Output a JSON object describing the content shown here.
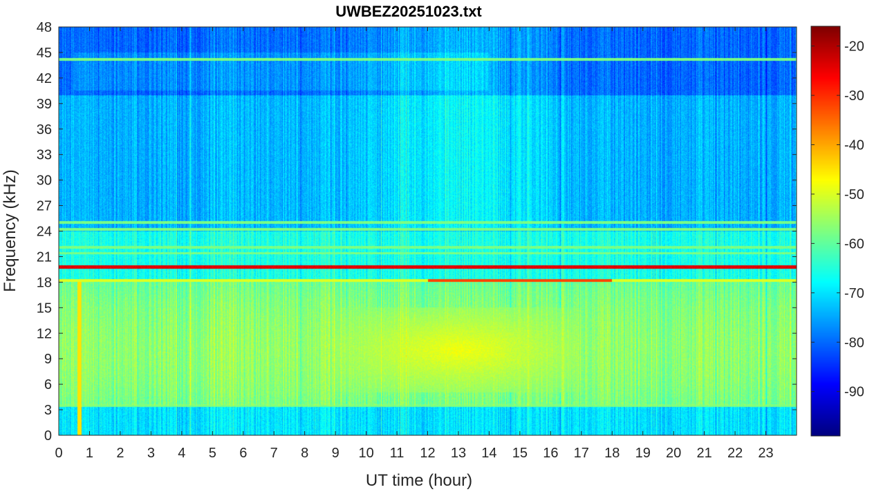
{
  "chart_data": {
    "type": "heatmap",
    "title": "UWBEZ20251023.txt",
    "xlabel": "UT time (hour)",
    "ylabel": "Frequency (kHz)",
    "xlim": [
      0,
      24
    ],
    "ylim": [
      0,
      48
    ],
    "x_ticks": [
      "0",
      "1",
      "2",
      "3",
      "4",
      "5",
      "6",
      "7",
      "8",
      "9",
      "10",
      "11",
      "12",
      "13",
      "14",
      "15",
      "16",
      "17",
      "18",
      "19",
      "20",
      "21",
      "22",
      "23"
    ],
    "y_ticks": [
      "0",
      "3",
      "6",
      "9",
      "12",
      "15",
      "18",
      "21",
      "24",
      "27",
      "30",
      "33",
      "36",
      "39",
      "42",
      "45",
      "48"
    ],
    "colorbar": {
      "colormap": "jet",
      "clim": [
        -99,
        -16
      ],
      "ticks": [
        "-90",
        "-80",
        "-70",
        "-60",
        "-50",
        "-40",
        "-30",
        "-20"
      ]
    },
    "features": {
      "strong_lines_khz": [
        19.8,
        18.2
      ],
      "narrowband_lines_khz": [
        21.4,
        22.1,
        24.2,
        25.0,
        44.2,
        3.5
      ],
      "quiet_band_khz": [
        40.5,
        45
      ],
      "intense_region": {
        "hours": [
          9,
          17
        ],
        "khz": [
          5,
          15
        ],
        "level": -48
      }
    }
  }
}
